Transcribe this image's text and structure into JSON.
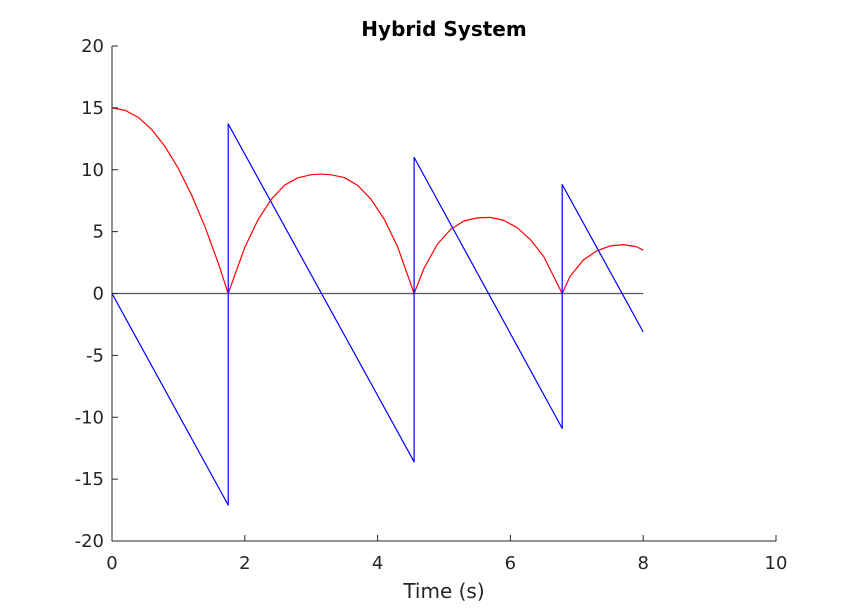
{
  "chart_data": {
    "type": "line",
    "title": "Hybrid System",
    "xlabel": "Time (s)",
    "ylabel": "",
    "xlim": [
      0,
      10
    ],
    "ylim": [
      -20,
      20
    ],
    "x_ticks": [
      0,
      2,
      4,
      6,
      8,
      10
    ],
    "y_ticks": [
      -20,
      -15,
      -10,
      -5,
      0,
      5,
      10,
      15,
      20
    ],
    "x_tick_labels": [
      "0",
      "2",
      "4",
      "6",
      "8",
      "10"
    ],
    "y_tick_labels": [
      "-20",
      "-15",
      "-10",
      "-5",
      "0",
      "5",
      "10",
      "15",
      "20"
    ],
    "grid": false,
    "legend": "none",
    "series": [
      {
        "color": "#ff0000",
        "x": [
          0,
          0.2,
          0.4,
          0.6,
          0.8,
          1.0,
          1.2,
          1.4,
          1.6,
          1.75,
          2.0,
          2.2,
          2.4,
          2.6,
          2.8,
          3.0,
          3.15,
          3.3,
          3.5,
          3.7,
          3.9,
          4.1,
          4.3,
          4.55,
          4.7,
          4.9,
          5.1,
          5.3,
          5.5,
          5.7,
          5.9,
          6.1,
          6.3,
          6.5,
          6.78,
          6.9,
          7.1,
          7.3,
          7.5,
          7.7,
          7.9,
          8.0
        ],
        "y": [
          15.0,
          14.8,
          14.22,
          13.24,
          11.86,
          10.1,
          7.94,
          5.4,
          2.46,
          0.0,
          3.73,
          5.97,
          7.62,
          8.76,
          9.35,
          9.6,
          9.65,
          9.59,
          9.37,
          8.74,
          7.62,
          6.0,
          3.8,
          0.0,
          2.05,
          3.98,
          5.18,
          5.86,
          6.11,
          6.15,
          5.91,
          5.33,
          4.36,
          3.0,
          0.0,
          1.4,
          2.72,
          3.44,
          3.84,
          3.95,
          3.78,
          3.5
        ]
      },
      {
        "color": "#0000ff",
        "x": [
          0,
          1.75,
          1.75,
          4.55,
          4.55,
          6.78,
          6.78,
          8.0
        ],
        "y": [
          0,
          -17.1,
          13.7,
          -13.6,
          11.0,
          -10.9,
          8.8,
          -3.1
        ]
      },
      {
        "color": "#555555",
        "x": [
          0,
          8.0
        ],
        "y": [
          0,
          0
        ]
      }
    ]
  }
}
